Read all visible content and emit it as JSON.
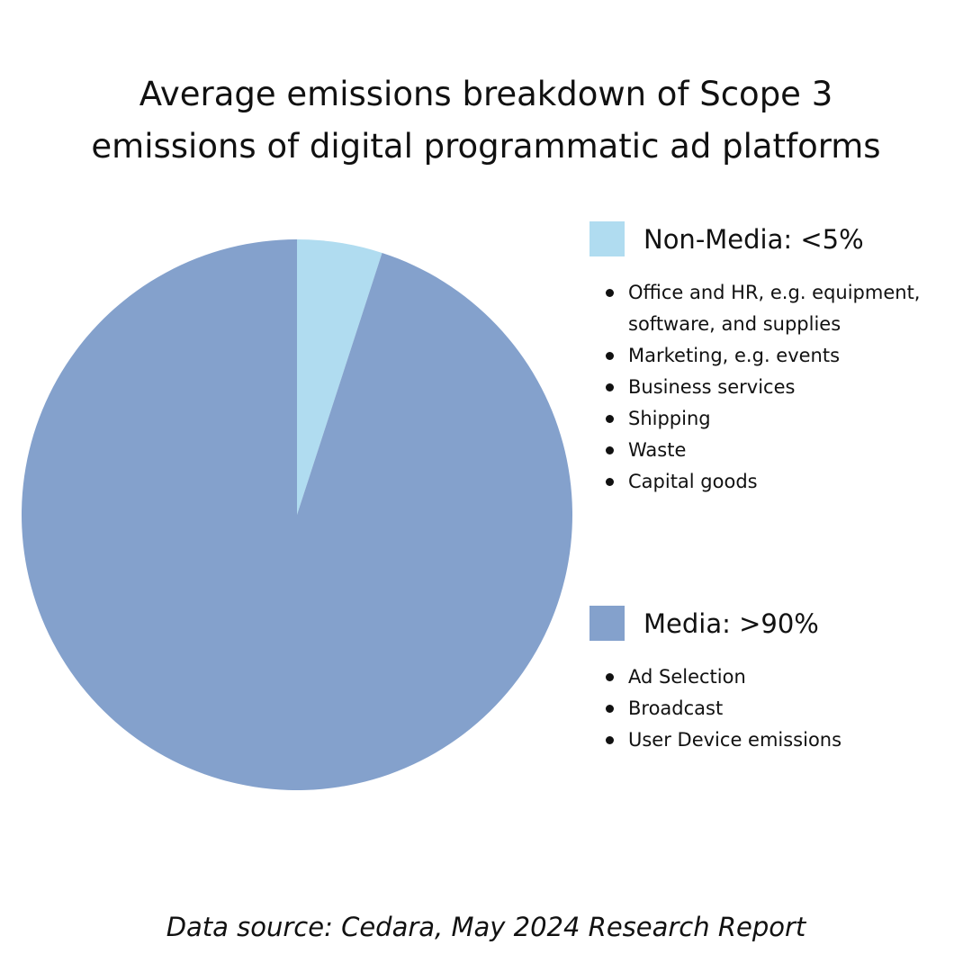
{
  "title_lines": [
    "Average emissions breakdown of Scope 3",
    "emissions of digital programmatic ad platforms"
  ],
  "chart_data": {
    "type": "pie",
    "title": "Average emissions breakdown of Scope 3 emissions of digital programmatic ad platforms",
    "slices": [
      {
        "label": "Non-Media",
        "value": 5,
        "color": "#b0dcf0"
      },
      {
        "label": "Media",
        "value": 95,
        "color": "#84a1cc"
      }
    ],
    "start_angle_deg": 0,
    "direction": "clockwise",
    "legend_position": "right"
  },
  "legend": [
    {
      "label": "Non-Media: <5%",
      "color": "#b0dcf0",
      "items": [
        "Office and HR, e.g. equipment, software, and supplies",
        "Marketing, e.g. events",
        "Business services",
        "Shipping",
        "Waste",
        "Capital goods"
      ]
    },
    {
      "label": "Media: >90%",
      "color": "#84a1cc",
      "items": [
        "Ad Selection",
        "Broadcast",
        "User Device emissions"
      ]
    }
  ],
  "source": "Data source: Cedara, May 2024 Research Report"
}
